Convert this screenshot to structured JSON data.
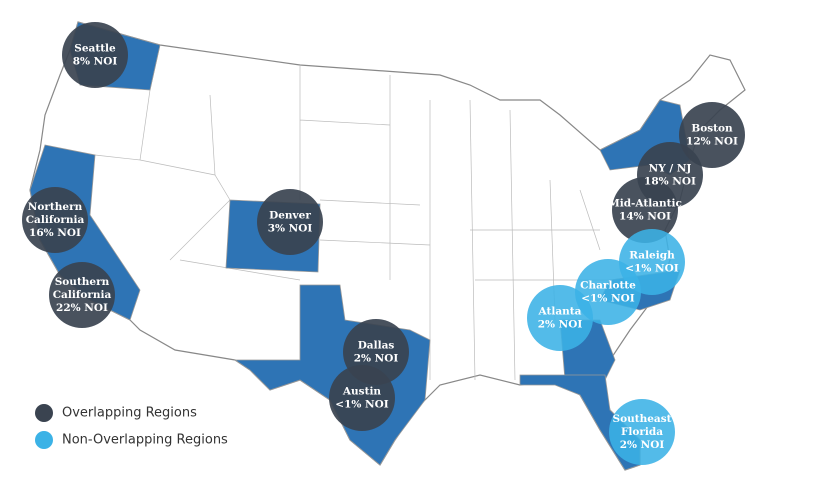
{
  "regions": [
    {
      "group": "overlapping",
      "lines": [
        "Seattle",
        "8% NOI"
      ]
    },
    {
      "group": "overlapping",
      "lines": [
        "Northern",
        "California",
        "16% NOI"
      ]
    },
    {
      "group": "overlapping",
      "lines": [
        "Southern",
        "California",
        "22% NOI"
      ]
    },
    {
      "group": "overlapping",
      "lines": [
        "Denver",
        "3% NOI"
      ]
    },
    {
      "group": "overlapping",
      "lines": [
        "Dallas",
        "2% NOI"
      ]
    },
    {
      "group": "overlapping",
      "lines": [
        "Austin",
        "<1% NOI"
      ]
    },
    {
      "group": "overlapping",
      "lines": [
        "Boston",
        "12% NOI"
      ]
    },
    {
      "group": "overlapping",
      "lines": [
        "NY / NJ",
        "18% NOI"
      ]
    },
    {
      "group": "overlapping",
      "lines": [
        "Mid-Atlantic",
        "14% NOI"
      ]
    },
    {
      "group": "non-overlapping",
      "lines": [
        "Raleigh",
        "<1% NOI"
      ]
    },
    {
      "group": "non-overlapping",
      "lines": [
        "Charlotte",
        "<1% NOI"
      ]
    },
    {
      "group": "non-overlapping",
      "lines": [
        "Atlanta",
        "2% NOI"
      ]
    },
    {
      "group": "non-overlapping",
      "lines": [
        "Southeast",
        "Florida",
        "2% NOI"
      ]
    }
  ],
  "legend": [
    {
      "group": "overlapping",
      "label": "Overlapping Regions",
      "color": "#3a4350"
    },
    {
      "group": "non-overlapping",
      "label": "Non-Overlapping Regions",
      "color": "#3bb2e6"
    }
  ]
}
